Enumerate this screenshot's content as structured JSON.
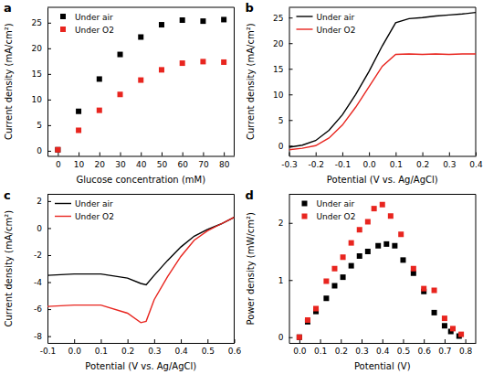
{
  "chart_data": [
    {
      "type": "scatter",
      "title": "a",
      "x_label": "Glucose concentration (mM)",
      "y_label": "Current density (mA/cm²)",
      "x": [
        0,
        10,
        20,
        30,
        40,
        50,
        60,
        70,
        80
      ],
      "series": [
        {
          "name": "Under air",
          "color": "#000000",
          "marker": "square",
          "values": [
            0.2,
            7.7,
            14.0,
            18.8,
            22.2,
            24.6,
            25.5,
            25.3,
            25.6
          ]
        },
        {
          "name": "Under O2",
          "color": "#e8251f",
          "marker": "square",
          "values": [
            0.2,
            4.0,
            7.9,
            11.0,
            13.8,
            15.8,
            17.1,
            17.4,
            17.3
          ]
        }
      ],
      "xlim": [
        -5,
        85
      ],
      "xticks": [
        0,
        10,
        20,
        30,
        40,
        50,
        60,
        70,
        80
      ],
      "ylim": [
        -1,
        28
      ],
      "yticks": [
        0,
        5,
        10,
        15,
        20,
        25
      ],
      "legend": "top-left"
    },
    {
      "type": "line",
      "title": "b",
      "x_label": "Potential (V vs. Ag/AgCl)",
      "y_label": "Current density (mA/cm²)",
      "x": [
        -0.3,
        -0.25,
        -0.2,
        -0.15,
        -0.1,
        -0.05,
        0,
        0.05,
        0.1,
        0.15,
        0.2,
        0.25,
        0.3,
        0.35,
        0.4
      ],
      "series": [
        {
          "name": "Under air",
          "color": "#000000",
          "line_style": "solid",
          "values": [
            -0.3,
            0.1,
            1.0,
            3.0,
            6.0,
            10.0,
            14.5,
            19.5,
            24.0,
            24.8,
            25.0,
            25.3,
            25.5,
            25.7,
            26.0
          ]
        },
        {
          "name": "Under O2",
          "color": "#e8251f",
          "line_style": "solid",
          "values": [
            -0.8,
            -0.5,
            0.0,
            1.5,
            4.0,
            7.5,
            11.5,
            15.5,
            17.8,
            17.9,
            17.8,
            17.9,
            17.8,
            17.9,
            17.9
          ]
        }
      ],
      "xlim": [
        -0.3,
        0.4
      ],
      "xticks": [
        -0.3,
        -0.2,
        -0.1,
        {
          "value": 0,
          "label": "0.0"
        },
        0.1,
        0.2,
        0.3,
        0.4
      ],
      "ylim": [
        -2,
        27
      ],
      "yticks": [
        0,
        5,
        10,
        15,
        20,
        25
      ],
      "legend": "top-left"
    },
    {
      "type": "line",
      "title": "c",
      "x_label": "Potential (V vs. Ag/AgCl)",
      "y_label": "Current density (mA/cm²)",
      "x": [
        -0.1,
        0,
        0.1,
        0.2,
        0.25,
        0.27,
        0.3,
        0.35,
        0.4,
        0.45,
        0.5,
        0.55,
        0.6
      ],
      "series": [
        {
          "name": "Under air",
          "color": "#000000",
          "line_style": "solid",
          "values": [
            -3.5,
            -3.4,
            -3.4,
            -3.7,
            -4.1,
            -4.2,
            -3.5,
            -2.4,
            -1.4,
            -0.6,
            -0.1,
            0.3,
            0.8
          ]
        },
        {
          "name": "Under O2",
          "color": "#e8251f",
          "line_style": "solid",
          "values": [
            -5.8,
            -5.7,
            -5.7,
            -6.3,
            -7.0,
            -6.9,
            -5.3,
            -3.6,
            -2.1,
            -0.9,
            -0.2,
            0.3,
            0.8
          ]
        }
      ],
      "xlim": [
        -0.1,
        0.6
      ],
      "xticks": [
        -0.1,
        {
          "value": 0,
          "label": "0.0"
        },
        0.1,
        0.2,
        0.3,
        0.4,
        0.5,
        0.6
      ],
      "ylim": [
        -8.5,
        2.5
      ],
      "yticks": [
        -8,
        -6,
        -4,
        -2,
        0,
        2
      ],
      "legend": "top-left"
    },
    {
      "type": "scatter",
      "title": "d",
      "x_label": "Potential (V)",
      "y_label": "Power density (mW/cm²)",
      "series": [
        {
          "name": "Under air",
          "color": "#000000",
          "marker": "square",
          "x": [
            0.0,
            0.04,
            0.08,
            0.13,
            0.17,
            0.21,
            0.25,
            0.29,
            0.33,
            0.38,
            0.42,
            0.46,
            0.5,
            0.55,
            0.6,
            0.65,
            0.7,
            0.73,
            0.77
          ],
          "values": [
            0,
            0.27,
            0.45,
            0.68,
            0.9,
            1.05,
            1.25,
            1.42,
            1.5,
            1.6,
            1.63,
            1.6,
            1.35,
            1.12,
            0.8,
            0.43,
            0.2,
            0.1,
            0.02
          ]
        },
        {
          "name": "Under O2",
          "color": "#e8251f",
          "marker": "square",
          "x": [
            0.0,
            0.04,
            0.08,
            0.13,
            0.17,
            0.21,
            0.25,
            0.29,
            0.33,
            0.36,
            0.4,
            0.44,
            0.49,
            0.55,
            0.6,
            0.65,
            0.7,
            0.74,
            0.78
          ],
          "values": [
            0,
            0.3,
            0.5,
            0.98,
            1.2,
            1.4,
            1.65,
            1.88,
            2.02,
            2.25,
            2.32,
            2.12,
            1.8,
            1.2,
            0.85,
            0.82,
            0.33,
            0.15,
            0.05
          ]
        }
      ],
      "xlim": [
        -0.05,
        0.85
      ],
      "xticks": [
        {
          "value": 0,
          "label": "0.0"
        },
        0.1,
        0.2,
        0.3,
        0.4,
        0.5,
        0.6,
        0.7,
        0.8
      ],
      "ylim": [
        -0.1,
        2.5
      ],
      "yticks": [
        0,
        1,
        2
      ],
      "legend": "top-left"
    }
  ]
}
